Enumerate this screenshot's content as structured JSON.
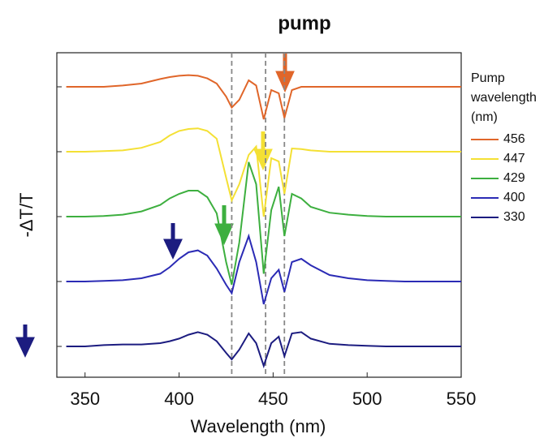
{
  "chart_data": {
    "type": "line",
    "title": "pump",
    "x_label": "Wavelength (nm)",
    "y_label": "-ΔT/T",
    "legend_title": [
      "Pump",
      "wavelength",
      "(nm)"
    ],
    "x": [
      340,
      350,
      360,
      370,
      380,
      390,
      395,
      400,
      405,
      410,
      415,
      420,
      425,
      428,
      432,
      437,
      441,
      445,
      449,
      453,
      456,
      460,
      465,
      470,
      480,
      490,
      500,
      510,
      520,
      530,
      540,
      550
    ],
    "series": [
      {
        "name": "456",
        "color": "#e0662a",
        "values": [
          4,
          4,
          4,
          4.02,
          4.05,
          4.12,
          4.15,
          4.17,
          4.18,
          4.17,
          4.13,
          4.05,
          3.85,
          3.68,
          3.8,
          4.1,
          4.02,
          3.5,
          3.95,
          3.9,
          3.52,
          3.95,
          4,
          4,
          4,
          4,
          4,
          4,
          4,
          4,
          4,
          4
        ]
      },
      {
        "name": "447",
        "color": "#f4e034",
        "values": [
          3,
          3,
          3.01,
          3.02,
          3.06,
          3.15,
          3.25,
          3.32,
          3.35,
          3.36,
          3.32,
          3.2,
          2.6,
          2.25,
          2.5,
          2.95,
          3.08,
          2,
          2.9,
          2.85,
          2.35,
          3.05,
          3.04,
          3.02,
          3,
          3,
          3,
          3,
          3,
          3,
          3,
          3
        ]
      },
      {
        "name": "429",
        "color": "#3daf3f",
        "values": [
          2,
          2,
          2.01,
          2.03,
          2.08,
          2.18,
          2.28,
          2.35,
          2.4,
          2.4,
          2.3,
          2.05,
          1.3,
          0.95,
          1.6,
          2.84,
          2.5,
          1.12,
          2.1,
          2.46,
          1.7,
          2.35,
          2.28,
          2.15,
          2.06,
          2.03,
          2.01,
          2,
          2,
          2,
          2,
          2
        ]
      },
      {
        "name": "400",
        "color": "#2b2bb5",
        "values": [
          1,
          1,
          1.01,
          1.02,
          1.05,
          1.12,
          1.22,
          1.35,
          1.45,
          1.48,
          1.4,
          1.2,
          0.95,
          0.82,
          1.3,
          1.7,
          1.3,
          0.65,
          1.05,
          1.18,
          0.84,
          1.3,
          1.35,
          1.25,
          1.1,
          1.05,
          1.02,
          1.01,
          1,
          1,
          1,
          1
        ]
      },
      {
        "name": "330",
        "color": "#1c1c80",
        "values": [
          0,
          0,
          0.02,
          0.03,
          0.03,
          0.05,
          0.08,
          0.12,
          0.18,
          0.22,
          0.18,
          0.08,
          -0.1,
          -0.2,
          -0.05,
          0.2,
          0.05,
          -0.3,
          0.05,
          0.15,
          -0.15,
          0.2,
          0.22,
          0.12,
          0.04,
          0.02,
          0.01,
          0,
          0,
          0,
          0,
          0
        ]
      }
    ],
    "xlim": [
      335,
      550
    ],
    "xticks": [
      350,
      400,
      450,
      500,
      550
    ],
    "ylim": [
      -0.475,
      4.525
    ],
    "yticks": [
      0,
      1,
      2,
      3,
      4
    ],
    "vlines": [
      428,
      446,
      456
    ]
  }
}
